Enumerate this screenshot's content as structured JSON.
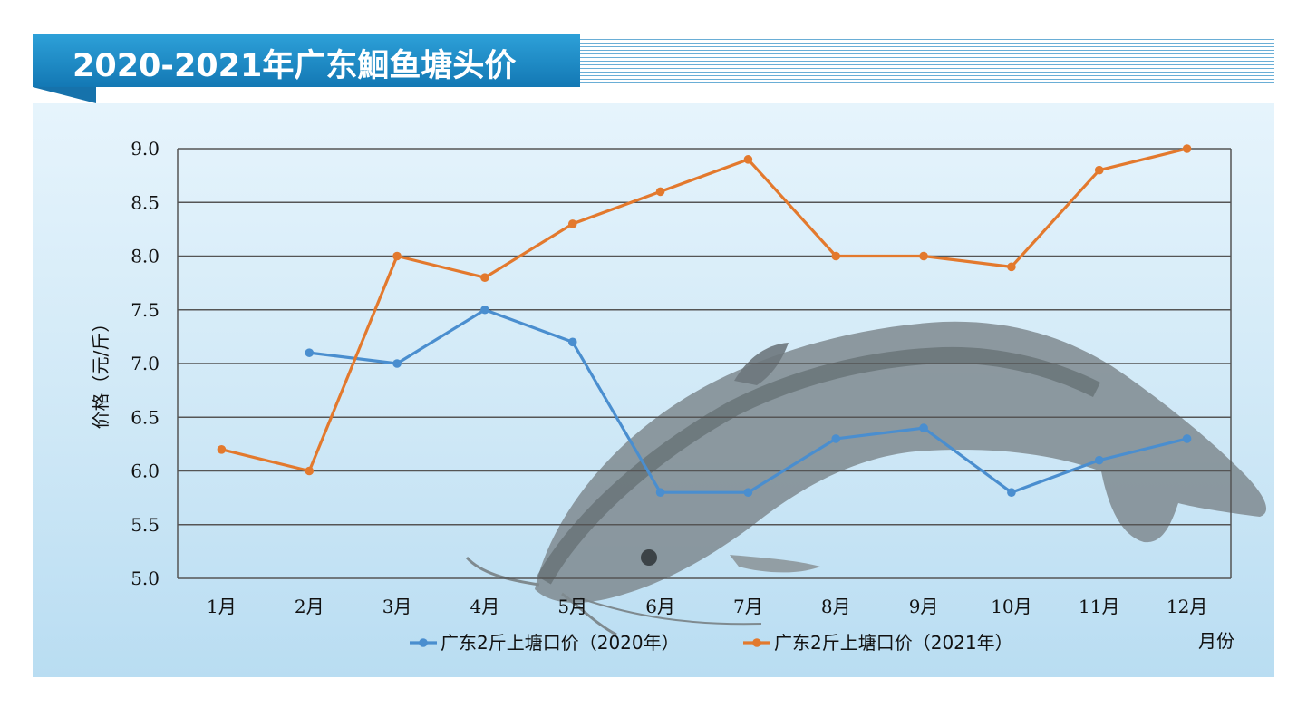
{
  "title": "2020-2021年广东鮰鱼塘头价",
  "colors": {
    "series_2020": "#4a8ecf",
    "series_2021": "#e3792d",
    "grid": "#555555"
  },
  "chart_data": {
    "type": "line",
    "title": "2020-2021年广东鮰鱼塘头价",
    "xlabel": "月份",
    "ylabel": "价格（元/斤）",
    "categories": [
      "1月",
      "2月",
      "3月",
      "4月",
      "5月",
      "6月",
      "7月",
      "8月",
      "9月",
      "10月",
      "11月",
      "12月"
    ],
    "y_ticks": [
      "5.0",
      "5.5",
      "6.0",
      "6.5",
      "7.0",
      "7.5",
      "8.0",
      "8.5",
      "9.0"
    ],
    "ylim": [
      5.0,
      9.0
    ],
    "grid": true,
    "legend_position": "bottom",
    "series": [
      {
        "name": "广东2斤上塘口价（2020年）",
        "color": "#4a8ecf",
        "values": [
          null,
          7.1,
          7.0,
          7.5,
          7.2,
          5.8,
          5.8,
          6.3,
          6.4,
          5.8,
          6.1,
          6.3
        ]
      },
      {
        "name": "广东2斤上塘口价（2021年）",
        "color": "#e3792d",
        "values": [
          6.2,
          6.0,
          8.0,
          7.8,
          8.3,
          8.6,
          8.9,
          8.0,
          8.0,
          7.9,
          8.8,
          9.0
        ]
      }
    ]
  }
}
